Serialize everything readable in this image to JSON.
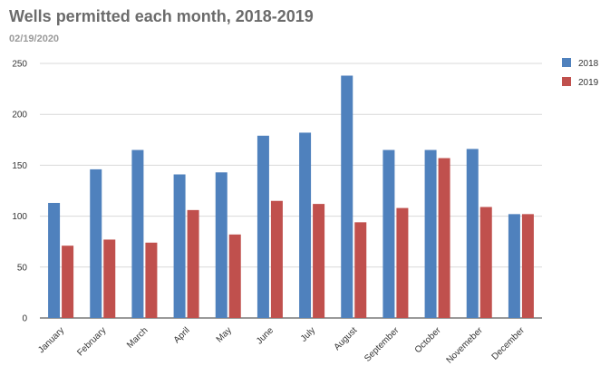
{
  "title": "Wells permitted each month, 2018-2019",
  "subtitle": "02/19/2020",
  "chart_data": {
    "type": "bar",
    "title": "Wells permitted each month, 2018-2019",
    "subtitle": "02/19/2020",
    "xlabel": "",
    "ylabel": "",
    "ylim": [
      0,
      250
    ],
    "yticks": [
      "0",
      "50",
      "100",
      "150",
      "200",
      "250"
    ],
    "grid": true,
    "legend_position": "right",
    "categories": [
      "January",
      "February",
      "March",
      "April",
      "May",
      "June",
      "July",
      "August",
      "September",
      "October",
      "Novemeber",
      "December"
    ],
    "series": [
      {
        "name": "2018",
        "color": "#4f81bd",
        "values": [
          113,
          146,
          165,
          141,
          143,
          179,
          182,
          238,
          165,
          165,
          166,
          102
        ]
      },
      {
        "name": "2019",
        "color": "#c0504d",
        "values": [
          71,
          77,
          74,
          106,
          82,
          115,
          112,
          94,
          108,
          157,
          109,
          102
        ]
      }
    ]
  }
}
